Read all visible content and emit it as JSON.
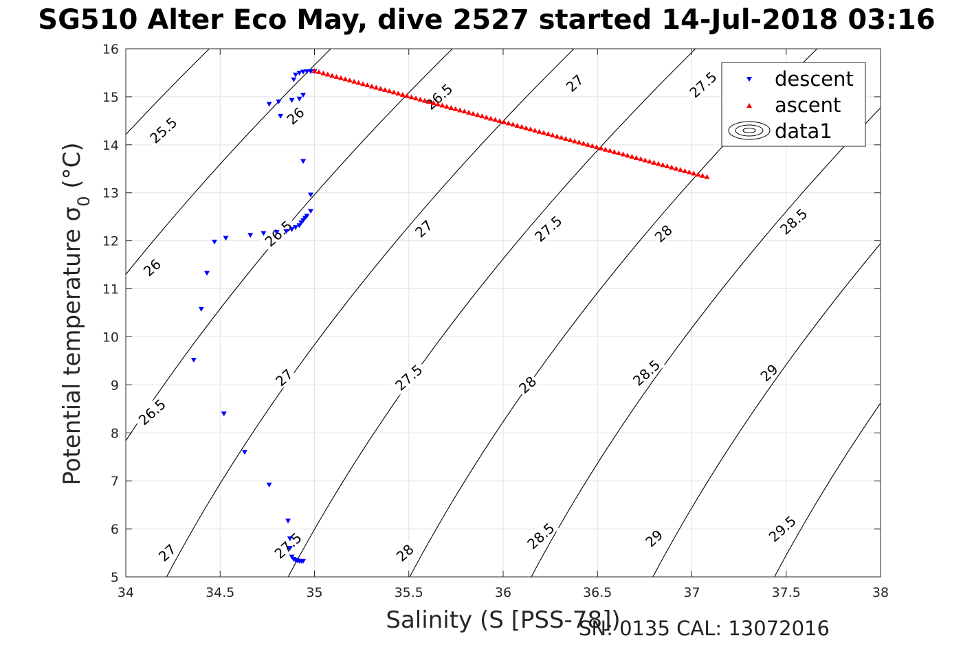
{
  "figure": {
    "title": "SG510 Alter Eco May, dive 2527 started 14-Jul-2018 03:16",
    "footer": "SN: 0135  CAL: 13072016"
  },
  "chart_data": {
    "type": "scatter",
    "title": "SG510 Alter Eco May, dive 2527 started 14-Jul-2018 03:16",
    "xlabel": "Salinity (S [PSS-78])",
    "ylabel": "Potential temperature σ",
    "ylabel_subscript": "0",
    "ylabel_unit": " (°C)",
    "xlim": [
      34,
      38
    ],
    "ylim": [
      5,
      16
    ],
    "x_ticks": [
      34,
      34.5,
      35,
      35.5,
      36,
      36.5,
      37,
      37.5,
      38
    ],
    "x_tick_labels": [
      "34",
      "34.5",
      "35",
      "35.5",
      "36",
      "36.5",
      "37",
      "37.5",
      "38"
    ],
    "y_ticks": [
      5,
      6,
      7,
      8,
      9,
      10,
      11,
      12,
      13,
      14,
      15,
      16
    ],
    "y_tick_labels": [
      "5",
      "6",
      "7",
      "8",
      "9",
      "10",
      "11",
      "12",
      "13",
      "14",
      "15",
      "16"
    ],
    "grid": true,
    "legend_position": "top-right",
    "series": [
      {
        "name": "descent",
        "marker": "triangle-down",
        "color": "#0000ff",
        "points": [
          [
            34.92,
            5.33
          ],
          [
            34.93,
            5.33
          ],
          [
            34.94,
            5.33
          ],
          [
            34.91,
            5.34
          ],
          [
            34.9,
            5.35
          ],
          [
            34.89,
            5.37
          ],
          [
            34.88,
            5.42
          ],
          [
            34.87,
            5.6
          ],
          [
            34.87,
            5.8
          ],
          [
            34.86,
            6.17
          ],
          [
            34.76,
            6.92
          ],
          [
            34.63,
            7.6
          ],
          [
            34.52,
            8.4
          ],
          [
            34.36,
            9.52
          ],
          [
            34.4,
            10.58
          ],
          [
            34.43,
            11.33
          ],
          [
            34.47,
            11.98
          ],
          [
            34.53,
            12.06
          ],
          [
            34.66,
            12.12
          ],
          [
            34.73,
            12.16
          ],
          [
            34.8,
            12.18
          ],
          [
            34.85,
            12.2
          ],
          [
            34.88,
            12.24
          ],
          [
            34.9,
            12.28
          ],
          [
            34.92,
            12.32
          ],
          [
            34.93,
            12.38
          ],
          [
            34.94,
            12.43
          ],
          [
            34.95,
            12.48
          ],
          [
            34.96,
            12.52
          ],
          [
            34.98,
            12.62
          ],
          [
            34.98,
            12.96
          ],
          [
            34.94,
            13.66
          ],
          [
            34.82,
            14.6
          ],
          [
            34.76,
            14.85
          ],
          [
            34.81,
            14.9
          ],
          [
            34.88,
            14.93
          ],
          [
            34.92,
            14.96
          ],
          [
            34.94,
            15.04
          ],
          [
            34.89,
            15.36
          ],
          [
            34.9,
            15.46
          ],
          [
            34.92,
            15.5
          ],
          [
            34.94,
            15.52
          ],
          [
            34.96,
            15.53
          ],
          [
            34.98,
            15.53
          ],
          [
            35.0,
            15.53
          ]
        ]
      },
      {
        "name": "ascent",
        "marker": "triangle-up",
        "color": "#ff0000",
        "start": [
          35.0,
          15.54
        ],
        "end": [
          37.08,
          13.33
        ],
        "count": 90
      },
      {
        "name": "data1",
        "kind": "contour",
        "quantity": "sigma0 isopycnals",
        "color": "#000000",
        "levels": [
          25.5,
          26,
          26.5,
          27,
          27.5,
          28,
          28.5,
          29,
          29.5
        ],
        "labels": [
          {
            "text": "25.5",
            "x": 34.2,
            "y": 14.3
          },
          {
            "text": "26",
            "x": 34.14,
            "y": 11.44
          },
          {
            "text": "26.5",
            "x": 34.14,
            "y": 8.43
          },
          {
            "text": "27",
            "x": 34.22,
            "y": 5.5
          },
          {
            "text": "26",
            "x": 34.9,
            "y": 14.6
          },
          {
            "text": "26.5",
            "x": 34.81,
            "y": 12.15
          },
          {
            "text": "27",
            "x": 34.84,
            "y": 9.15
          },
          {
            "text": "27.5",
            "x": 34.86,
            "y": 5.65
          },
          {
            "text": "26.5",
            "x": 35.66,
            "y": 15.0
          },
          {
            "text": "27",
            "x": 35.58,
            "y": 12.25
          },
          {
            "text": "27.5",
            "x": 35.5,
            "y": 9.15
          },
          {
            "text": "28",
            "x": 35.48,
            "y": 5.5
          },
          {
            "text": "27",
            "x": 36.38,
            "y": 15.28
          },
          {
            "text": "27.5",
            "x": 36.24,
            "y": 12.25
          },
          {
            "text": "28",
            "x": 36.13,
            "y": 9.0
          },
          {
            "text": "28.5",
            "x": 36.2,
            "y": 5.85
          },
          {
            "text": "27.5",
            "x": 37.06,
            "y": 15.25
          },
          {
            "text": "28",
            "x": 36.85,
            "y": 12.15
          },
          {
            "text": "28.5",
            "x": 36.76,
            "y": 9.25
          },
          {
            "text": "29",
            "x": 36.8,
            "y": 5.8
          },
          {
            "text": "28.5",
            "x": 37.54,
            "y": 12.4
          },
          {
            "text": "29",
            "x": 37.41,
            "y": 9.25
          },
          {
            "text": "29.5",
            "x": 37.48,
            "y": 6.0
          }
        ]
      }
    ]
  }
}
